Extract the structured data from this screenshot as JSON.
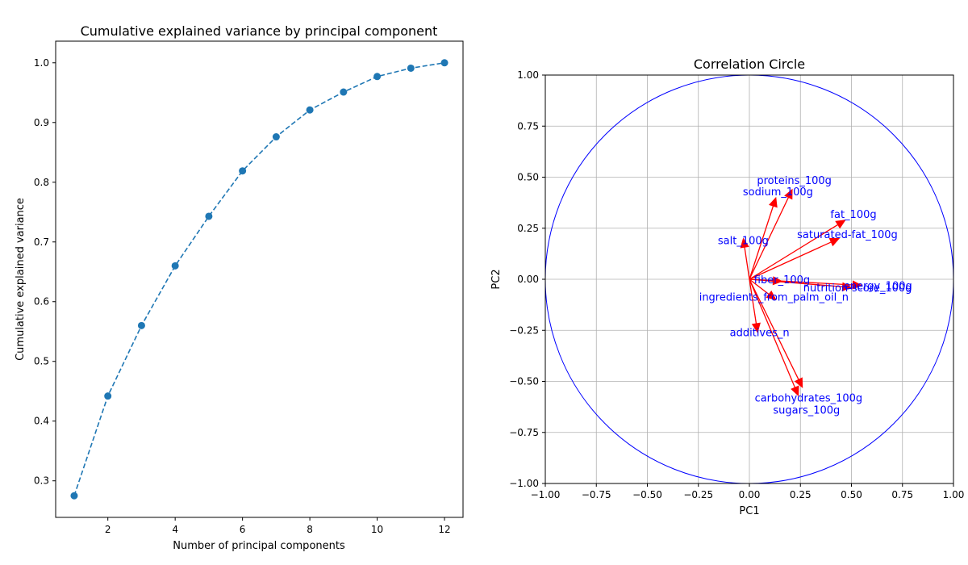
{
  "chart_data": [
    {
      "type": "line",
      "title": "Cumulative explained variance by principal component",
      "xlabel": "Number of principal components",
      "ylabel": "Cumulative explained variance",
      "x": [
        1,
        2,
        3,
        4,
        5,
        6,
        7,
        8,
        9,
        10,
        11,
        12
      ],
      "series": [
        {
          "values": [
            0.275,
            0.442,
            0.56,
            0.66,
            0.743,
            0.819,
            0.876,
            0.921,
            0.951,
            0.977,
            0.991,
            1.0
          ],
          "color": "#1f77b4",
          "linestyle": "dashed",
          "marker": "circle"
        }
      ],
      "xlim": [
        0.45,
        12.55
      ],
      "ylim": [
        0.2388,
        1.0362
      ],
      "xticks": [
        2,
        4,
        6,
        8,
        10,
        12
      ],
      "yticks": [
        0.3,
        0.4,
        0.5,
        0.6,
        0.7,
        0.8,
        0.9,
        1.0
      ],
      "xtick_labels": [
        "2",
        "4",
        "6",
        "8",
        "10",
        "12"
      ],
      "ytick_labels": [
        "0.3",
        "0.4",
        "0.5",
        "0.6",
        "0.7",
        "0.8",
        "0.9",
        "1.0"
      ],
      "grid": false
    },
    {
      "type": "scatter",
      "subtype": "correlation-circle",
      "title": "Correlation Circle",
      "xlabel": "PC1",
      "ylabel": "PC2",
      "xlim": [
        -1.0,
        1.0
      ],
      "ylim": [
        -1.0,
        1.0
      ],
      "xticks": [
        -1.0,
        -0.75,
        -0.5,
        -0.25,
        0.0,
        0.25,
        0.5,
        0.75,
        1.0
      ],
      "yticks": [
        -1.0,
        -0.75,
        -0.5,
        -0.25,
        0.0,
        0.25,
        0.5,
        0.75,
        1.0
      ],
      "xtick_labels": [
        "−1.00",
        "−0.75",
        "−0.50",
        "−0.25",
        "0.00",
        "0.25",
        "0.50",
        "0.75",
        "1.00"
      ],
      "ytick_labels": [
        "−1.00",
        "−0.75",
        "−0.50",
        "−0.25",
        "0.00",
        "0.25",
        "0.50",
        "0.75",
        "1.00"
      ],
      "grid": true,
      "circle_color": "#0000ff",
      "arrow_color": "#ff0000",
      "label_color": "#0000ff",
      "vectors": [
        {
          "name": "proteins_100g",
          "x": 0.21,
          "y": 0.44,
          "label_x": 0.22,
          "label_y": 0.48
        },
        {
          "name": "sodium_100g",
          "x": 0.13,
          "y": 0.4,
          "label_x": 0.14,
          "label_y": 0.425
        },
        {
          "name": "fat_100g",
          "x": 0.47,
          "y": 0.29,
          "label_x": 0.51,
          "label_y": 0.315
        },
        {
          "name": "saturated-fat_100g",
          "x": 0.44,
          "y": 0.2,
          "label_x": 0.48,
          "label_y": 0.215
        },
        {
          "name": "salt_100g",
          "x": -0.03,
          "y": 0.2,
          "label_x": -0.03,
          "label_y": 0.185
        },
        {
          "name": "fiber_100g",
          "x": 0.16,
          "y": -0.01,
          "label_x": 0.16,
          "label_y": -0.005
        },
        {
          "name": "energy_100g",
          "x": 0.55,
          "y": -0.03,
          "label_x": 0.63,
          "label_y": -0.035
        },
        {
          "name": "nutrition-score_100g",
          "x": 0.5,
          "y": -0.04,
          "label_x": 0.53,
          "label_y": -0.045
        },
        {
          "name": "ingredients_from_palm_oil_n",
          "x": 0.13,
          "y": -0.1,
          "label_x": 0.12,
          "label_y": -0.09
        },
        {
          "name": "additives_n",
          "x": 0.04,
          "y": -0.26,
          "label_x": 0.05,
          "label_y": -0.265
        },
        {
          "name": "carbohydrates_100g",
          "x": 0.26,
          "y": -0.53,
          "label_x": 0.29,
          "label_y": -0.585
        },
        {
          "name": "sugars_100g",
          "x": 0.24,
          "y": -0.57,
          "label_x": 0.28,
          "label_y": -0.645
        }
      ]
    }
  ]
}
